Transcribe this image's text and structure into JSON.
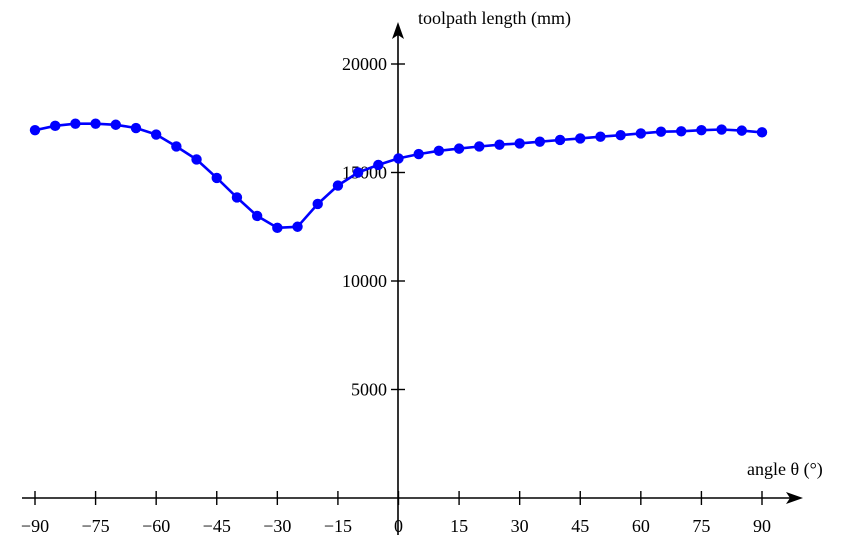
{
  "chart_data": {
    "type": "line",
    "xlabel": "angle θ (°)",
    "ylabel": "toolpath length (mm)",
    "xlim": [
      -90,
      90
    ],
    "ylim": [
      0,
      20000
    ],
    "x_ticks": [
      -90,
      -75,
      -60,
      -45,
      -30,
      -15,
      0,
      15,
      30,
      45,
      60,
      75,
      90
    ],
    "x_tick_labels": [
      "−90",
      "−75",
      "−60",
      "−45",
      "−30",
      "−15",
      "0",
      "15",
      "30",
      "45",
      "60",
      "75",
      "90"
    ],
    "y_ticks": [
      5000,
      10000,
      15000,
      20000
    ],
    "y_tick_labels": [
      "5000",
      "10000",
      "15000",
      "20000"
    ],
    "grid": false,
    "legend": "none",
    "series": [
      {
        "color": "#0000ff",
        "marker": "circle",
        "x": [
          -90,
          -85,
          -80,
          -75,
          -70,
          -65,
          -60,
          -55,
          -50,
          -45,
          -40,
          -35,
          -30,
          -25,
          -20,
          -15,
          -10,
          -5,
          0,
          5,
          10,
          15,
          20,
          25,
          30,
          35,
          40,
          45,
          50,
          55,
          60,
          65,
          70,
          75,
          80,
          85,
          90
        ],
        "y": [
          16950,
          17150,
          17250,
          17250,
          17200,
          17050,
          16750,
          16200,
          15600,
          14750,
          13850,
          13000,
          12450,
          12500,
          13550,
          14400,
          15000,
          15350,
          15650,
          15850,
          16000,
          16100,
          16200,
          16280,
          16340,
          16420,
          16500,
          16570,
          16650,
          16720,
          16800,
          16880,
          16900,
          16950,
          16980,
          16930,
          16850
        ]
      }
    ]
  }
}
